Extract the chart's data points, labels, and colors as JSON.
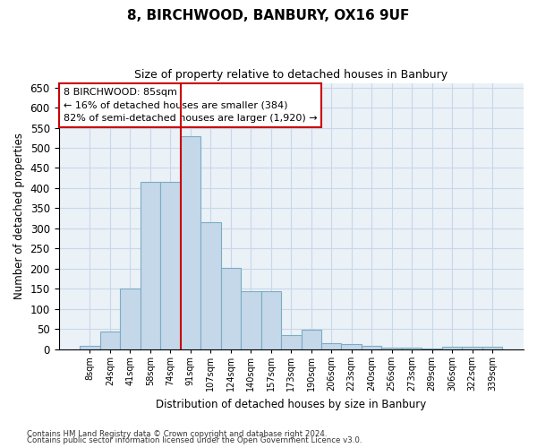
{
  "title": "8, BIRCHWOOD, BANBURY, OX16 9UF",
  "subtitle": "Size of property relative to detached houses in Banbury",
  "xlabel": "Distribution of detached houses by size in Banbury",
  "ylabel": "Number of detached properties",
  "categories": [
    "8sqm",
    "24sqm",
    "41sqm",
    "58sqm",
    "74sqm",
    "91sqm",
    "107sqm",
    "124sqm",
    "140sqm",
    "157sqm",
    "173sqm",
    "190sqm",
    "206sqm",
    "223sqm",
    "240sqm",
    "256sqm",
    "273sqm",
    "289sqm",
    "306sqm",
    "322sqm",
    "339sqm"
  ],
  "values": [
    8,
    45,
    150,
    415,
    415,
    530,
    315,
    202,
    145,
    145,
    35,
    48,
    15,
    13,
    8,
    4,
    4,
    2,
    6,
    7,
    7
  ],
  "bar_color": "#c5d8ea",
  "bar_edge_color": "#7bacc4",
  "bar_edge_width": 0.8,
  "grid_color": "#c8d8e8",
  "bg_color": "#eaf1f7",
  "vline_x": 4.5,
  "vline_color": "#cc0000",
  "annotation_text": "8 BIRCHWOOD: 85sqm\n← 16% of detached houses are smaller (384)\n82% of semi-detached houses are larger (1,920) →",
  "annotation_box_color": "#ffffff",
  "annotation_border_color": "#cc0000",
  "ylim": [
    0,
    660
  ],
  "yticks": [
    0,
    50,
    100,
    150,
    200,
    250,
    300,
    350,
    400,
    450,
    500,
    550,
    600,
    650
  ],
  "footnote1": "Contains HM Land Registry data © Crown copyright and database right 2024.",
  "footnote2": "Contains public sector information licensed under the Open Government Licence v3.0."
}
